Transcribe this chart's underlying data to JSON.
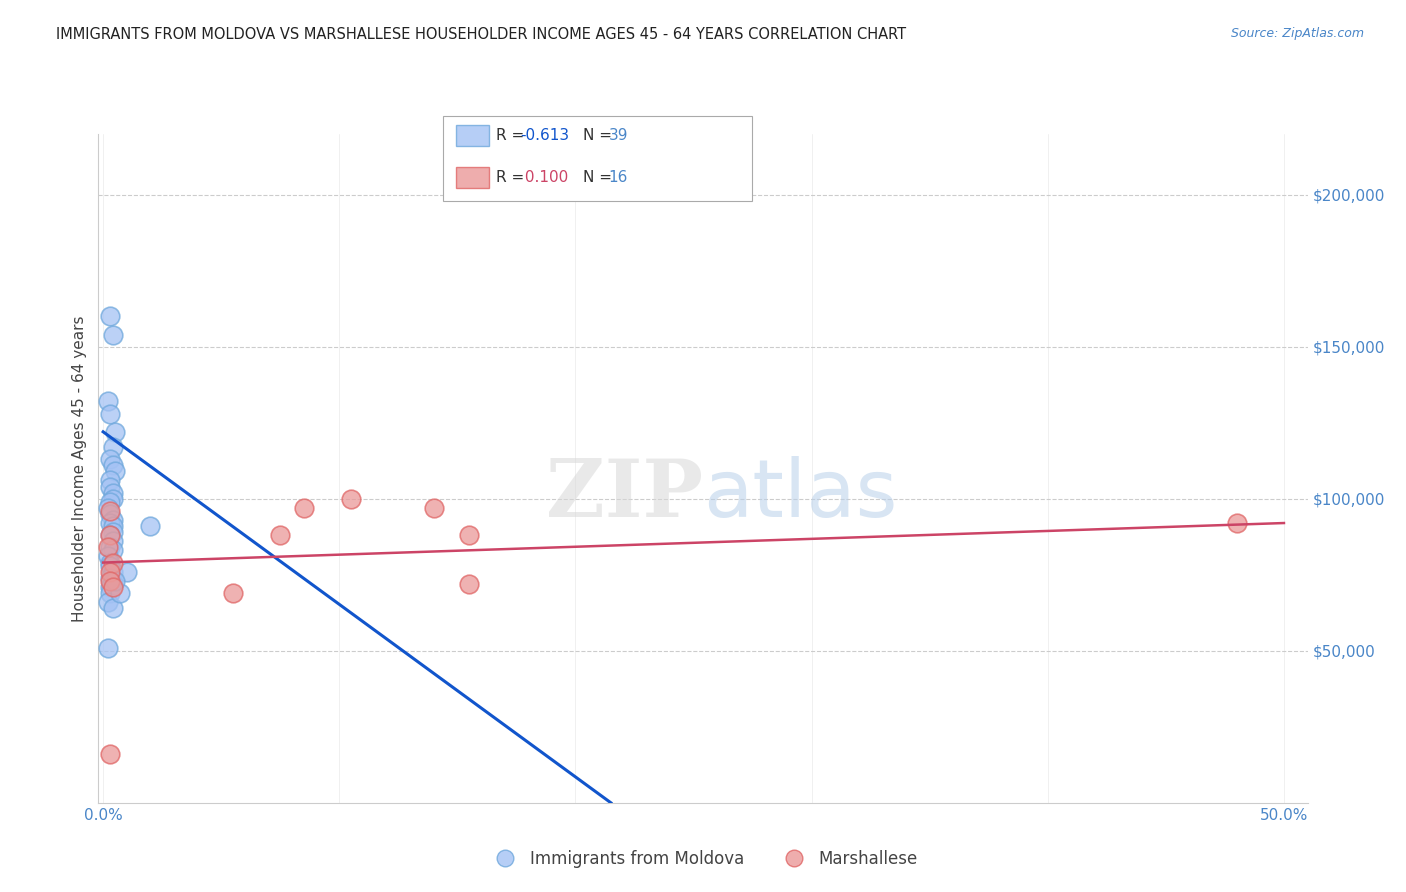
{
  "title": "IMMIGRANTS FROM MOLDOVA VS MARSHALLESE HOUSEHOLDER INCOME AGES 45 - 64 YEARS CORRELATION CHART",
  "source": "Source: ZipAtlas.com",
  "ylabel": "Householder Income Ages 45 - 64 years",
  "legend_blue_label": "Immigrants from Moldova",
  "legend_pink_label": "Marshallese",
  "ylim_min": 0,
  "ylim_max": 220000,
  "xlim_min": -0.002,
  "xlim_max": 0.51,
  "yticks": [
    0,
    50000,
    100000,
    150000,
    200000
  ],
  "xticks": [
    0.0,
    0.1,
    0.2,
    0.3,
    0.4,
    0.5
  ],
  "blue_scatter_x": [
    0.003,
    0.004,
    0.002,
    0.003,
    0.005,
    0.004,
    0.003,
    0.004,
    0.005,
    0.003,
    0.003,
    0.004,
    0.004,
    0.003,
    0.002,
    0.003,
    0.004,
    0.003,
    0.004,
    0.004,
    0.003,
    0.004,
    0.003,
    0.004,
    0.002,
    0.003,
    0.003,
    0.004,
    0.003,
    0.004,
    0.003,
    0.003,
    0.002,
    0.004,
    0.002,
    0.02,
    0.01,
    0.007,
    0.005
  ],
  "blue_scatter_y": [
    160000,
    154000,
    132000,
    128000,
    122000,
    117000,
    113000,
    111000,
    109000,
    106000,
    104000,
    102000,
    100000,
    99000,
    97000,
    95000,
    93000,
    92000,
    91000,
    89000,
    88000,
    86000,
    84000,
    83000,
    81000,
    79000,
    78000,
    76000,
    74000,
    73000,
    71000,
    69000,
    66000,
    64000,
    51000,
    91000,
    76000,
    69000,
    73000
  ],
  "pink_scatter_x": [
    0.003,
    0.003,
    0.002,
    0.004,
    0.003,
    0.003,
    0.004,
    0.003,
    0.105,
    0.085,
    0.155,
    0.14,
    0.155,
    0.075,
    0.055,
    0.48
  ],
  "pink_scatter_y": [
    96000,
    88000,
    84000,
    79000,
    76000,
    73000,
    71000,
    16000,
    100000,
    97000,
    88000,
    97000,
    72000,
    88000,
    69000,
    92000
  ],
  "blue_line_x": [
    0.0,
    0.215
  ],
  "blue_line_y": [
    122000,
    0
  ],
  "pink_line_x": [
    0.0,
    0.5
  ],
  "pink_line_y": [
    79000,
    92000
  ],
  "blue_color": "#a4c2f4",
  "blue_edge_color": "#6fa8dc",
  "blue_line_color": "#1155cc",
  "pink_color": "#ea9999",
  "pink_edge_color": "#e06666",
  "pink_line_color": "#cc4466",
  "axis_label_color": "#4a86c8",
  "grid_color": "#cccccc",
  "title_color": "#222222",
  "background_color": "#ffffff"
}
